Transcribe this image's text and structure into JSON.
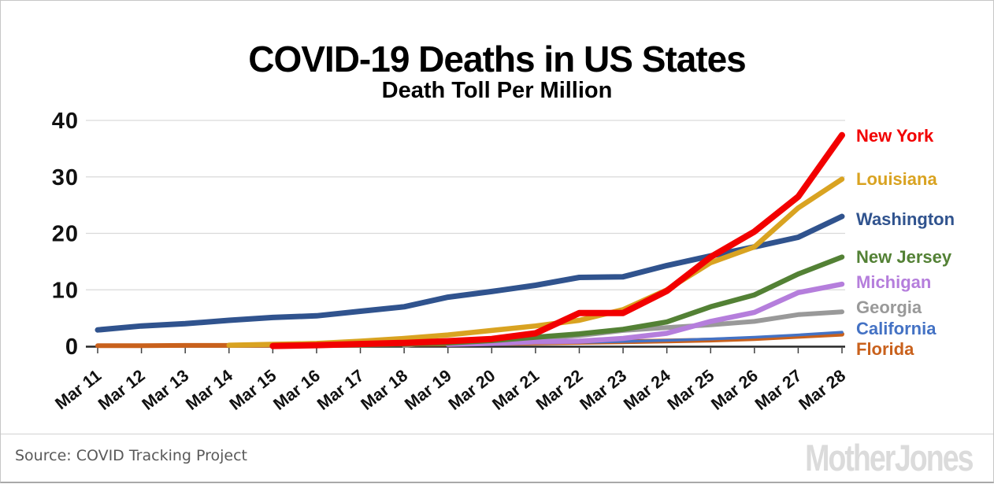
{
  "title": "COVID-19 Deaths in US States",
  "subtitle": "Death Toll Per Million",
  "source": "Source: COVID Tracking Project",
  "branding": "Mother Jones",
  "chart_data": {
    "type": "line",
    "title": "COVID-19 Deaths in US States",
    "subtitle": "Death Toll Per Million",
    "xlabel": "",
    "ylabel": "",
    "ylim": [
      0,
      40
    ],
    "y_ticks": [
      0,
      10,
      20,
      30,
      40
    ],
    "grid": true,
    "legend_position": "right",
    "categories": [
      "Mar 11",
      "Mar 12",
      "Mar 13",
      "Mar 14",
      "Mar 15",
      "Mar 16",
      "Mar 17",
      "Mar 18",
      "Mar 19",
      "Mar 20",
      "Mar 21",
      "Mar 22",
      "Mar 23",
      "Mar 24",
      "Mar 25",
      "Mar 26",
      "Mar 27",
      "Mar 28"
    ],
    "series": [
      {
        "name": "Washington",
        "color": "#30538e",
        "line_width": 7,
        "values": [
          2.9,
          3.6,
          4.0,
          4.6,
          5.1,
          5.4,
          6.2,
          7.0,
          8.7,
          9.7,
          10.8,
          12.2,
          12.3,
          14.3,
          16.0,
          17.6,
          19.3,
          23.0
        ]
      },
      {
        "name": "Georgia",
        "color": "#999999",
        "line_width": 6,
        "values": [
          null,
          null,
          null,
          null,
          null,
          null,
          null,
          0.15,
          0.9,
          1.2,
          1.4,
          1.9,
          2.8,
          3.3,
          3.8,
          4.4,
          5.6,
          6.1
        ]
      },
      {
        "name": "Florida",
        "color": "#c9611c",
        "line_width": 6,
        "values": [
          0.1,
          0.1,
          0.15,
          0.15,
          0.2,
          0.25,
          0.3,
          0.35,
          0.4,
          0.5,
          0.6,
          0.7,
          0.8,
          0.95,
          1.1,
          1.35,
          1.75,
          2.15
        ]
      },
      {
        "name": "California",
        "color": "#4472c4",
        "line_width": 3.5,
        "values": [
          null,
          null,
          null,
          null,
          null,
          null,
          null,
          null,
          0.35,
          0.5,
          0.6,
          0.7,
          0.85,
          1.05,
          1.3,
          1.6,
          2.0,
          2.5
        ]
      },
      {
        "name": "Michigan",
        "color": "#b57edc",
        "line_width": 6.5,
        "values": [
          null,
          null,
          null,
          null,
          null,
          null,
          null,
          null,
          0.35,
          0.5,
          0.8,
          0.9,
          1.4,
          2.3,
          4.4,
          6.0,
          9.5,
          11.0
        ]
      },
      {
        "name": "New Jersey",
        "color": "#538135",
        "line_width": 6.5,
        "values": [
          null,
          null,
          null,
          null,
          null,
          0.15,
          0.25,
          0.4,
          0.6,
          1.0,
          1.6,
          2.2,
          3.0,
          4.3,
          7.0,
          9.1,
          12.8,
          15.8
        ]
      },
      {
        "name": "Louisiana",
        "color": "#d9a321",
        "line_width": 6.5,
        "values": [
          null,
          null,
          null,
          0.2,
          0.35,
          0.5,
          0.9,
          1.4,
          2.0,
          2.8,
          3.6,
          4.6,
          6.5,
          10.0,
          14.8,
          17.6,
          24.5,
          29.6
        ]
      },
      {
        "name": "New York",
        "color": "#f20000",
        "line_width": 8,
        "values": [
          null,
          null,
          null,
          null,
          0.05,
          0.2,
          0.4,
          0.6,
          0.9,
          1.3,
          2.3,
          5.9,
          5.9,
          9.8,
          15.8,
          20.3,
          26.5,
          37.4
        ]
      }
    ]
  }
}
